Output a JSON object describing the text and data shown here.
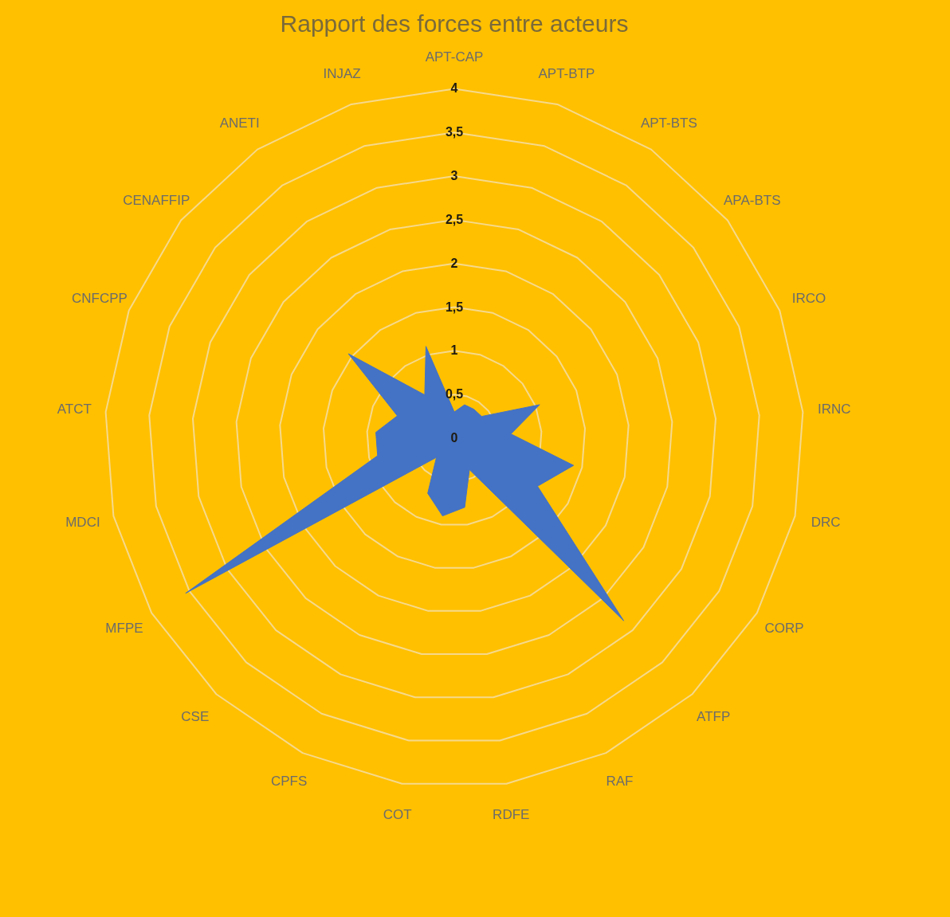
{
  "chart_data": {
    "type": "radar",
    "title": "Rapport des forces entre acteurs",
    "categories": [
      "APT-CAP",
      "APT-BTP",
      "APT-BTS",
      "APA-BTS",
      "IRCO",
      "IRNC",
      "DRC",
      "CORP",
      "ATFP",
      "RAF",
      "RDFE",
      "COT",
      "CPFS",
      "CSE",
      "MFPE",
      "MDCI",
      "ATCT",
      "CNFCPP",
      "CENAFFIP",
      "ANETI",
      "INJAZ"
    ],
    "series": [
      {
        "color": "#4472c4",
        "values": [
          0.3,
          0.4,
          0.4,
          0.4,
          1.05,
          0.65,
          1.4,
          1.1,
          2.85,
          0.4,
          0.8,
          0.9,
          0.7,
          0.3,
          3.55,
          0.9,
          0.9,
          0.7,
          1.55,
          0.6,
          1.1
        ]
      }
    ],
    "ylim": [
      0,
      4
    ],
    "yticks": [
      0,
      {
        "value": 0.5,
        "label": "0,5"
      },
      1,
      {
        "value": 1.5,
        "label": "1,5"
      },
      2,
      {
        "value": 2.5,
        "label": "2,5"
      },
      3,
      {
        "value": 3.5,
        "label": "3,5"
      },
      4
    ],
    "grid": true
  }
}
